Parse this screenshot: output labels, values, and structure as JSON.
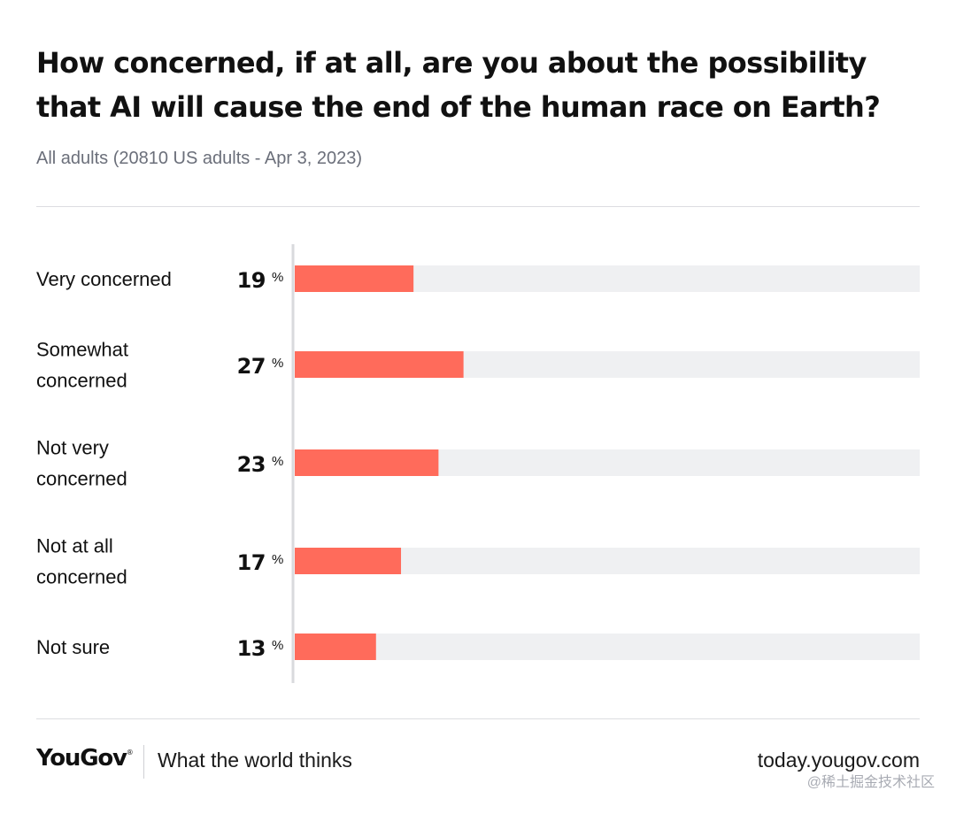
{
  "chart_data": {
    "type": "bar",
    "orientation": "horizontal",
    "title": "How concerned, if at all, are you about the possibility that AI will cause the end of the human race on Earth?",
    "subtitle": "All adults (20810 US adults - Apr 3, 2023)",
    "categories": [
      [
        "Very concerned"
      ],
      [
        "Somewhat",
        "concerned"
      ],
      [
        "Not very",
        "concerned"
      ],
      [
        "Not at all",
        "concerned"
      ],
      [
        "Not sure"
      ]
    ],
    "values": [
      19,
      27,
      23,
      17,
      13
    ],
    "value_suffix": "%",
    "xlim": [
      0,
      100
    ],
    "bar_color": "#ff6b5b",
    "track_color": "#eff0f2",
    "axis_color": "#d9dadd"
  },
  "footer": {
    "logo": "YouGov",
    "logo_mark": "®",
    "tagline": "What the world thinks",
    "url": "today.yougov.com"
  },
  "watermark": "@稀土掘金技术社区"
}
